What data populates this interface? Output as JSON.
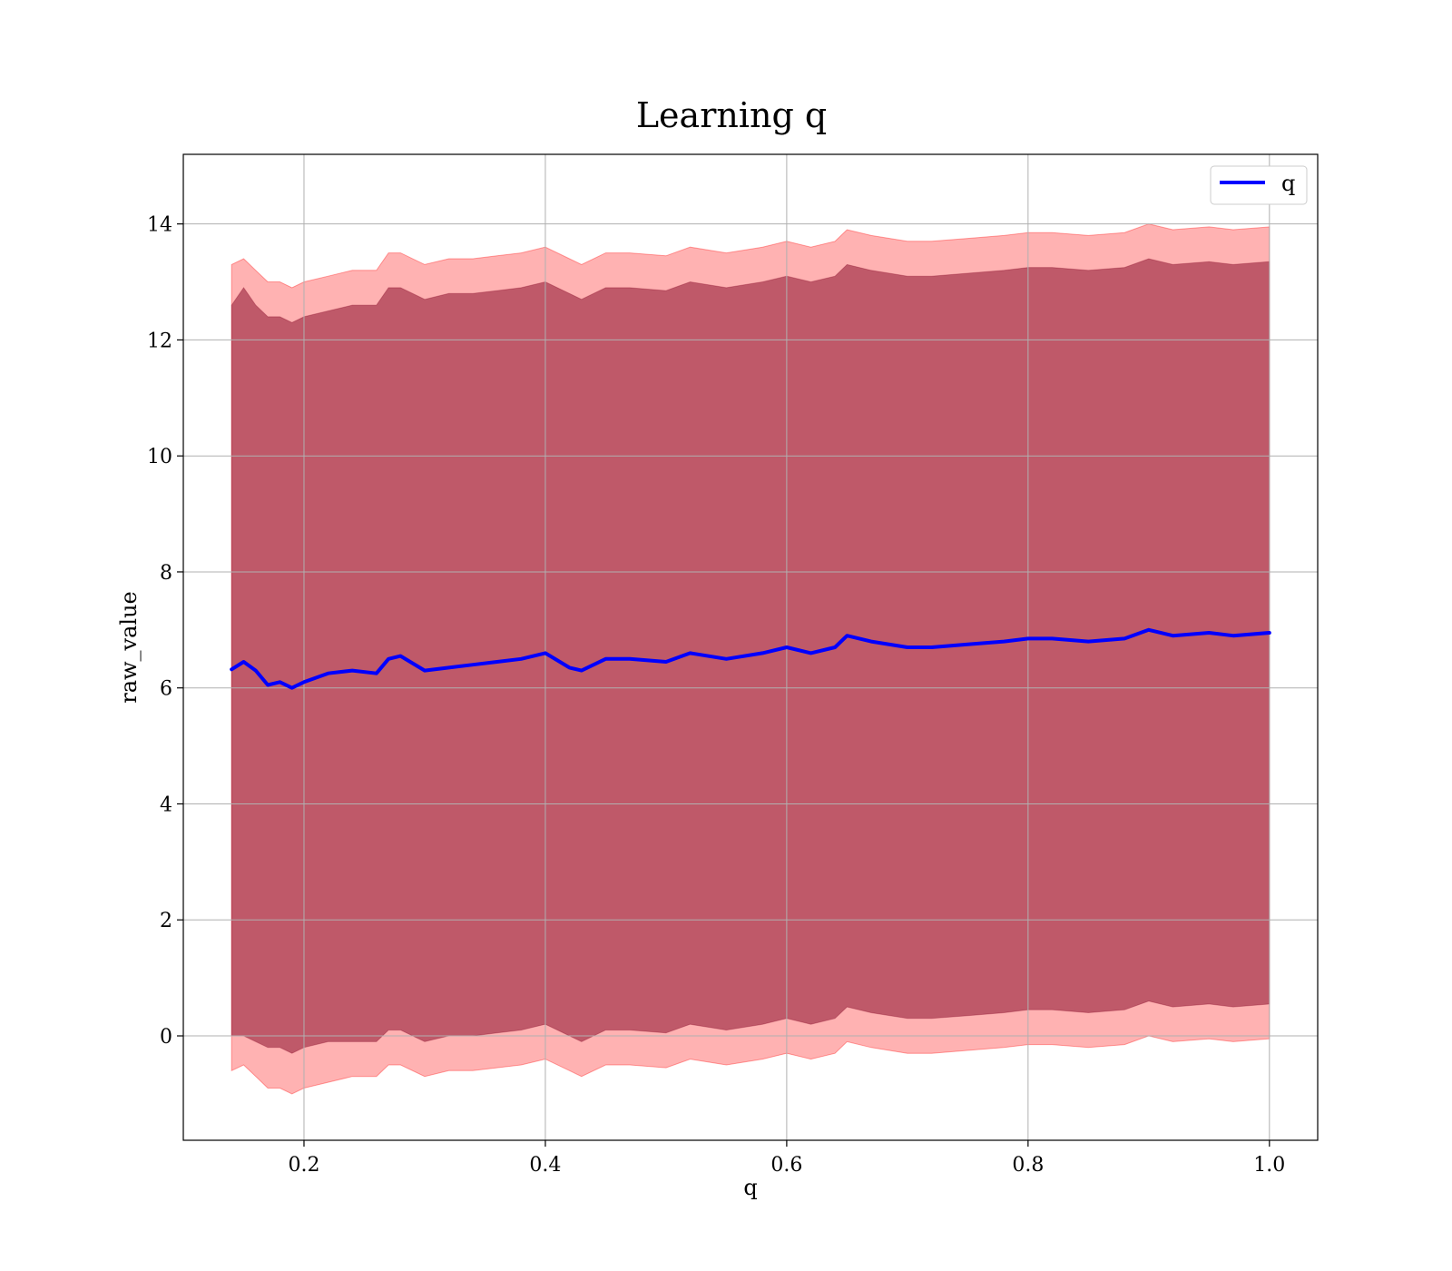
{
  "chart_data": {
    "type": "line",
    "title": "Learning q",
    "xlabel": "q",
    "ylabel": "raw_value",
    "xlim": [
      0.1,
      1.04
    ],
    "ylim": [
      -1.8,
      15.2
    ],
    "grid": true,
    "legend": {
      "placement": "top-right",
      "entries": [
        {
          "label": "q",
          "color": "#0000ff"
        }
      ]
    },
    "x_ticks": [
      {
        "value": 0.2,
        "label": "0.2"
      },
      {
        "value": 0.4,
        "label": "0.4"
      },
      {
        "value": 0.6,
        "label": "0.6"
      },
      {
        "value": 0.8,
        "label": "0.8"
      },
      {
        "value": 1.0,
        "label": "1.0"
      }
    ],
    "y_ticks": [
      {
        "value": 0,
        "label": "0"
      },
      {
        "value": 2,
        "label": "2"
      },
      {
        "value": 4,
        "label": "4"
      },
      {
        "value": 6,
        "label": "6"
      },
      {
        "value": 8,
        "label": "8"
      },
      {
        "value": 10,
        "label": "10"
      },
      {
        "value": 12,
        "label": "12"
      },
      {
        "value": 14,
        "label": "14"
      }
    ],
    "colors": {
      "line": "#0000ff",
      "outer_band": "#ff0000",
      "inner_band": "#800020",
      "grid": "#b0b0b0",
      "axes": "#000000"
    },
    "series": [
      {
        "name": "q",
        "x": [
          0.14,
          0.15,
          0.16,
          0.17,
          0.18,
          0.19,
          0.2,
          0.22,
          0.24,
          0.26,
          0.27,
          0.28,
          0.3,
          0.32,
          0.34,
          0.36,
          0.38,
          0.4,
          0.42,
          0.43,
          0.45,
          0.47,
          0.5,
          0.52,
          0.55,
          0.58,
          0.6,
          0.62,
          0.64,
          0.65,
          0.67,
          0.7,
          0.72,
          0.75,
          0.78,
          0.8,
          0.82,
          0.85,
          0.88,
          0.9,
          0.92,
          0.95,
          0.97,
          1.0
        ],
        "y": [
          6.32,
          6.45,
          6.3,
          6.05,
          6.1,
          6.0,
          6.1,
          6.25,
          6.3,
          6.25,
          6.5,
          6.55,
          6.3,
          6.35,
          6.4,
          6.45,
          6.5,
          6.6,
          6.35,
          6.3,
          6.5,
          6.5,
          6.45,
          6.6,
          6.5,
          6.6,
          6.7,
          6.6,
          6.7,
          6.9,
          6.8,
          6.7,
          6.7,
          6.75,
          6.8,
          6.85,
          6.85,
          6.8,
          6.85,
          7.0,
          6.9,
          6.95,
          6.9,
          6.95
        ],
        "inner_lower": [
          0.0,
          0.0,
          -0.1,
          -0.2,
          -0.2,
          -0.3,
          -0.2,
          -0.1,
          -0.1,
          -0.1,
          0.1,
          0.1,
          -0.1,
          0.0,
          0.0,
          0.05,
          0.1,
          0.2,
          0.0,
          -0.1,
          0.1,
          0.1,
          0.05,
          0.2,
          0.1,
          0.2,
          0.3,
          0.2,
          0.3,
          0.5,
          0.4,
          0.3,
          0.3,
          0.35,
          0.4,
          0.45,
          0.45,
          0.4,
          0.45,
          0.6,
          0.5,
          0.55,
          0.5,
          0.55
        ],
        "inner_upper": [
          12.6,
          12.9,
          12.6,
          12.4,
          12.4,
          12.3,
          12.4,
          12.5,
          12.6,
          12.6,
          12.9,
          12.9,
          12.7,
          12.8,
          12.8,
          12.85,
          12.9,
          13.0,
          12.8,
          12.7,
          12.9,
          12.9,
          12.85,
          13.0,
          12.9,
          13.0,
          13.1,
          13.0,
          13.1,
          13.3,
          13.2,
          13.1,
          13.1,
          13.15,
          13.2,
          13.25,
          13.25,
          13.2,
          13.25,
          13.4,
          13.3,
          13.35,
          13.3,
          13.35
        ],
        "outer_lower": [
          -0.6,
          -0.5,
          -0.7,
          -0.9,
          -0.9,
          -1.0,
          -0.9,
          -0.8,
          -0.7,
          -0.7,
          -0.5,
          -0.5,
          -0.7,
          -0.6,
          -0.6,
          -0.55,
          -0.5,
          -0.4,
          -0.6,
          -0.7,
          -0.5,
          -0.5,
          -0.55,
          -0.4,
          -0.5,
          -0.4,
          -0.3,
          -0.4,
          -0.3,
          -0.1,
          -0.2,
          -0.3,
          -0.3,
          -0.25,
          -0.2,
          -0.15,
          -0.15,
          -0.2,
          -0.15,
          0.0,
          -0.1,
          -0.05,
          -0.1,
          -0.05
        ],
        "outer_upper": [
          13.3,
          13.4,
          13.2,
          13.0,
          13.0,
          12.9,
          13.0,
          13.1,
          13.2,
          13.2,
          13.5,
          13.5,
          13.3,
          13.4,
          13.4,
          13.45,
          13.5,
          13.6,
          13.4,
          13.3,
          13.5,
          13.5,
          13.45,
          13.6,
          13.5,
          13.6,
          13.7,
          13.6,
          13.7,
          13.9,
          13.8,
          13.7,
          13.7,
          13.75,
          13.8,
          13.85,
          13.85,
          13.8,
          13.85,
          14.0,
          13.9,
          13.95,
          13.9,
          13.95
        ]
      }
    ]
  }
}
